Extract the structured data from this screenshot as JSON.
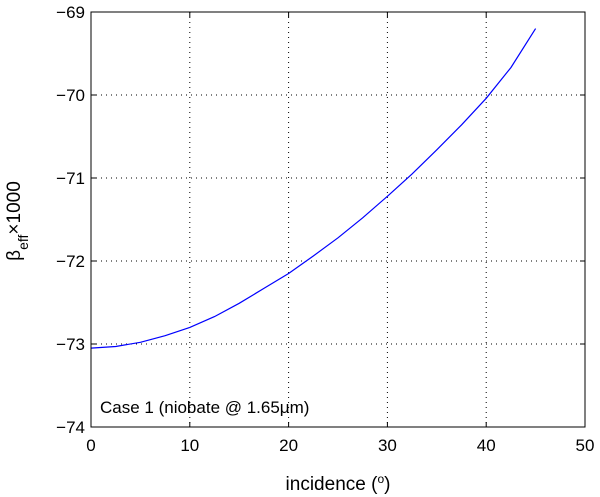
{
  "chart_data": {
    "type": "line",
    "title": "",
    "xlabel": "incidence (",
    "xlabel_sup": "o",
    "xlabel_close": ")",
    "ylabel_beta": "β",
    "ylabel_sub": "eff",
    "ylabel_rest": "×1000",
    "xlim": [
      0,
      50
    ],
    "ylim": [
      -74,
      -69
    ],
    "xticks": [
      0,
      10,
      20,
      30,
      40,
      50
    ],
    "yticks": [
      -74,
      -73,
      -72,
      -71,
      -70,
      -69
    ],
    "grid": true,
    "annotation": "Case 1 (niobate @ 1.65μm)",
    "series": [
      {
        "color": "#0000ff",
        "x": [
          0,
          2.5,
          5,
          7.5,
          10,
          12.5,
          15,
          17.5,
          20,
          22.5,
          25,
          27.5,
          30,
          32.5,
          35,
          37.5,
          40,
          42.5,
          45
        ],
        "y": [
          -73.05,
          -73.03,
          -72.98,
          -72.9,
          -72.8,
          -72.67,
          -72.51,
          -72.33,
          -72.15,
          -71.94,
          -71.72,
          -71.48,
          -71.22,
          -70.95,
          -70.66,
          -70.36,
          -70.04,
          -69.67,
          -69.2
        ]
      }
    ]
  }
}
